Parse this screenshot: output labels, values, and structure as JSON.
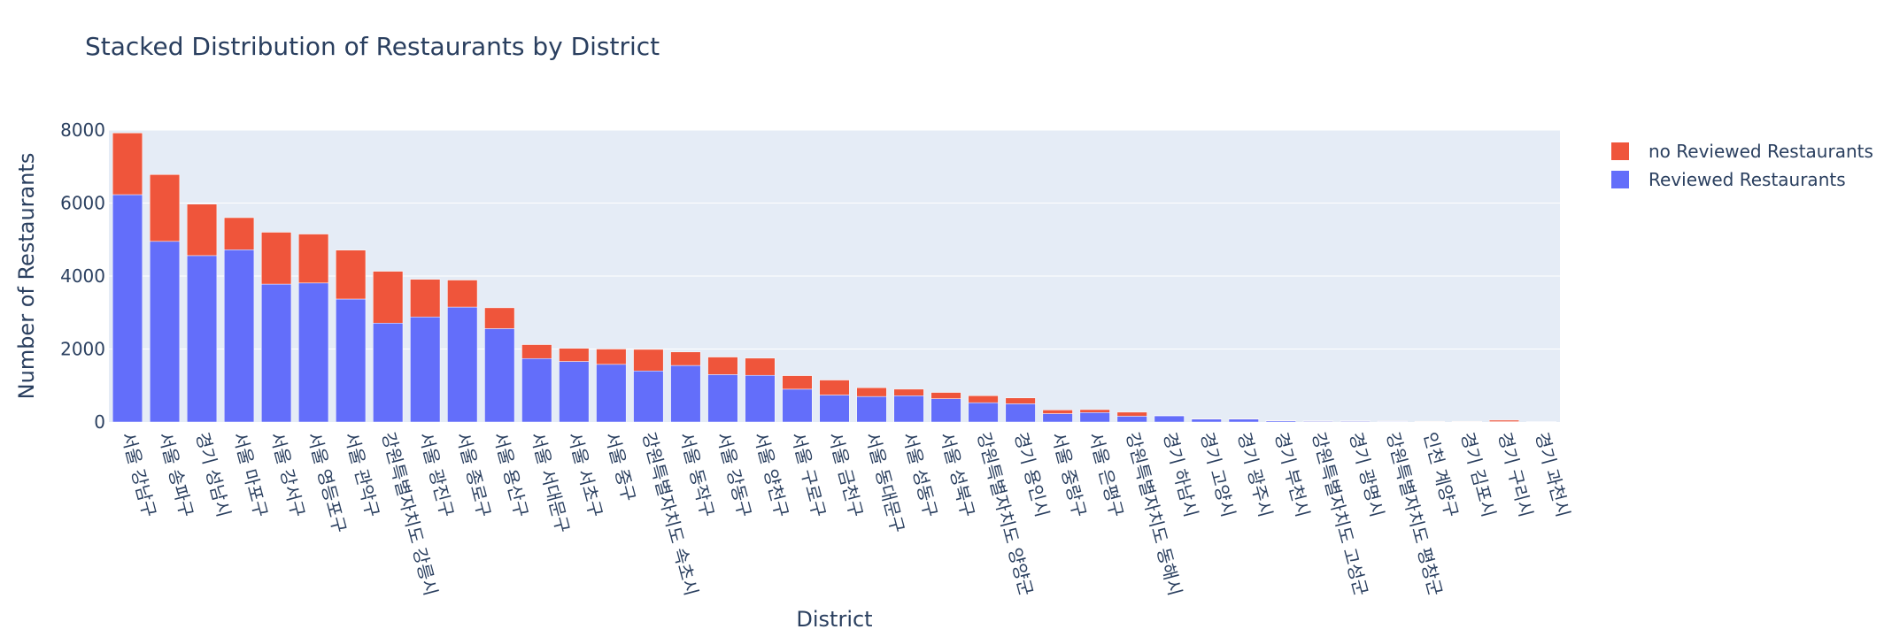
{
  "chart_data": {
    "type": "bar",
    "stacked": true,
    "title": "Stacked Distribution of Restaurants by District",
    "xlabel": "District",
    "ylabel": "Number of Restaurants",
    "ylim": [
      0,
      8000
    ],
    "yticks": [
      0,
      2000,
      4000,
      6000,
      8000
    ],
    "grid": true,
    "legend_position": "top-right",
    "categories": [
      "서울 강남구",
      "서울 송파구",
      "경기 성남시",
      "서울 마포구",
      "서울 강서구",
      "서울 영등포구",
      "서울 관악구",
      "강원특별자치도 강릉시",
      "서울 광진구",
      "서울 종로구",
      "서울 용산구",
      "서울 서대문구",
      "서울 서초구",
      "서울 중구",
      "강원특별자치도 속초시",
      "서울 동작구",
      "서울 강동구",
      "서울 양천구",
      "서울 구로구",
      "서울 금천구",
      "서울 동대문구",
      "서울 성동구",
      "서울 성북구",
      "강원특별자치도 양양군",
      "경기 용인시",
      "서울 중랑구",
      "서울 은평구",
      "강원특별자치도 동해시",
      "경기 하남시",
      "경기 고양시",
      "경기 광주시",
      "경기 부천시",
      "강원특별자치도 고성군",
      "경기 광명시",
      "강원특별자치도 평창군",
      "인천 계양구",
      "경기 김포시",
      "경기 구리시",
      "경기 과천시"
    ],
    "series": [
      {
        "name": "Reviewed Restaurants",
        "color": "#636efa",
        "values": [
          6230,
          4950,
          4560,
          4720,
          3780,
          3810,
          3370,
          2710,
          2880,
          3150,
          2560,
          1740,
          1660,
          1580,
          1400,
          1550,
          1300,
          1280,
          900,
          740,
          700,
          720,
          640,
          530,
          500,
          230,
          260,
          160,
          170,
          80,
          80,
          30,
          20,
          20,
          15,
          10,
          10,
          10,
          5
        ]
      },
      {
        "name": "no Reviewed Restaurants",
        "color": "#ef553b",
        "values": [
          1690,
          1830,
          1410,
          880,
          1420,
          1340,
          1340,
          1420,
          1030,
          740,
          570,
          380,
          360,
          420,
          590,
          370,
          480,
          470,
          370,
          410,
          240,
          180,
          170,
          190,
          160,
          100,
          80,
          110,
          10,
          10,
          10,
          10,
          10,
          10,
          10,
          10,
          10,
          40,
          5
        ]
      }
    ],
    "legend": [
      "no Reviewed Restaurants",
      "Reviewed Restaurants"
    ]
  }
}
